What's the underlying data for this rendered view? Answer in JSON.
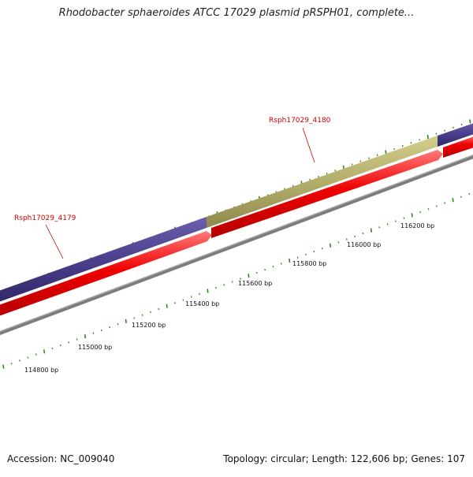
{
  "title": "Rhodobacter sphaeroides ATCC 17029 plasmid pRSPH01, complete...",
  "footer": {
    "accession": "Accession: NC_009040",
    "summary": "Topology: circular; Length: 122,606 bp; Genes: 107"
  },
  "genes": [
    {
      "label": "Rsph17029_4179",
      "color": "#d00000"
    },
    {
      "label": "Rsph17029_4180",
      "color": "#d00000"
    }
  ],
  "scale_labels": [
    "114800 bp",
    "115000 bp",
    "115200 bp",
    "115400 bp",
    "115600 bp",
    "115800 bp",
    "116000 bp",
    "116200 bp"
  ],
  "colors": {
    "feature_blue": "#4a3f8c",
    "feature_olive": "#b3ae6a",
    "cds_red": "#ee0000",
    "backbone": "#7d7d7d",
    "ticks": "#2f8a1e"
  }
}
